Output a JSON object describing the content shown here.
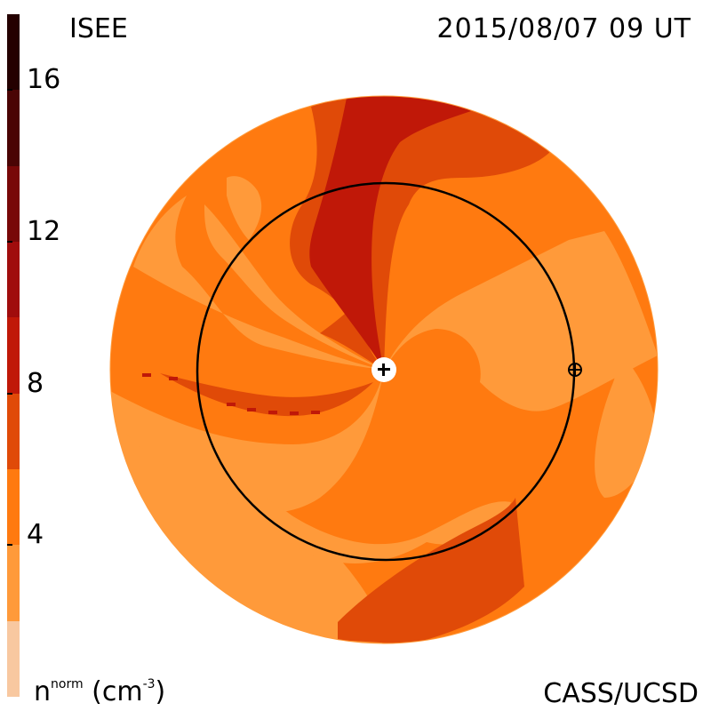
{
  "header": {
    "model_label": "ISEE",
    "timestamp": "2015/08/07 09 UT"
  },
  "footer": {
    "unit_label_main": "n",
    "unit_label_sup": "norm",
    "unit_label_rest": " (cm",
    "unit_label_exp": "-3",
    "unit_label_close": ")",
    "credit": "CASS/UCSD"
  },
  "colorbar": {
    "ticks": [
      "4",
      "8",
      "12",
      "16"
    ],
    "range": [
      0,
      18
    ],
    "bands": [
      {
        "from": 0,
        "to": 2,
        "color": "#f8c8a0"
      },
      {
        "from": 2,
        "to": 4,
        "color": "#ff9a3a"
      },
      {
        "from": 4,
        "to": 6,
        "color": "#ff7a10"
      },
      {
        "from": 6,
        "to": 8,
        "color": "#e04a08"
      },
      {
        "from": 8,
        "to": 10,
        "color": "#c01808"
      },
      {
        "from": 10,
        "to": 12,
        "color": "#a00c0c"
      },
      {
        "from": 12,
        "to": 14,
        "color": "#780808"
      },
      {
        "from": 14,
        "to": 16,
        "color": "#4a0404"
      },
      {
        "from": 16,
        "to": 18,
        "color": "#240000"
      }
    ]
  },
  "markers": {
    "sun_symbol": "+",
    "earth_symbol": "⊕"
  },
  "colors": {
    "background": "#ffffff",
    "level_light": "#ff9a3a",
    "level_mid": "#ff7a10",
    "level_high": "#e04a08",
    "level_peak": "#c01808"
  }
}
